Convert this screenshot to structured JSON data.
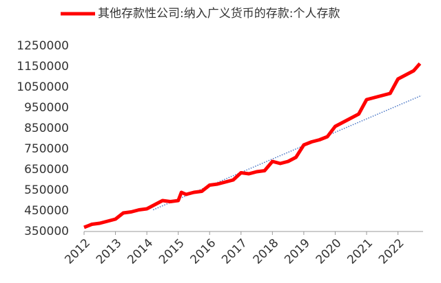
{
  "chart_data": {
    "type": "line",
    "series": [
      {
        "name": "其他存款性公司:纳入广义货币的存款:个人存款",
        "color": "#ff0000",
        "x": [
          2012.0,
          2012.25,
          2012.5,
          2012.75,
          2013.0,
          2013.25,
          2013.5,
          2013.75,
          2014.0,
          2014.25,
          2014.5,
          2014.75,
          2015.0,
          2015.1,
          2015.25,
          2015.5,
          2015.75,
          2016.0,
          2016.25,
          2016.5,
          2016.75,
          2017.0,
          2017.25,
          2017.5,
          2017.75,
          2018.0,
          2018.25,
          2018.5,
          2018.75,
          2019.0,
          2019.25,
          2019.5,
          2019.75,
          2020.0,
          2020.25,
          2020.5,
          2020.75,
          2021.0,
          2021.25,
          2021.5,
          2021.75,
          2022.0,
          2022.25,
          2022.5,
          2022.7
        ],
        "values": [
          370000,
          385000,
          390000,
          400000,
          410000,
          440000,
          445000,
          455000,
          460000,
          480000,
          500000,
          495000,
          500000,
          540000,
          530000,
          540000,
          545000,
          575000,
          580000,
          590000,
          600000,
          635000,
          630000,
          640000,
          645000,
          690000,
          680000,
          690000,
          710000,
          770000,
          785000,
          795000,
          810000,
          860000,
          880000,
          900000,
          920000,
          990000,
          1000000,
          1010000,
          1020000,
          1090000,
          1110000,
          1130000,
          1165000
        ]
      }
    ],
    "trendline": {
      "color": "#4472c4",
      "x": [
        2014.2,
        2022.75
      ],
      "values": [
        455000,
        1010000
      ]
    },
    "xlim": [
      2012,
      2022.8
    ],
    "xticks": [
      2012,
      2013,
      2014,
      2015,
      2016,
      2017,
      2018,
      2019,
      2020,
      2021,
      2022
    ],
    "ylim": [
      350000,
      1250000
    ],
    "yticks": [
      350000,
      450000,
      550000,
      650000,
      750000,
      850000,
      950000,
      1050000,
      1150000,
      1250000
    ],
    "legend": "top"
  }
}
